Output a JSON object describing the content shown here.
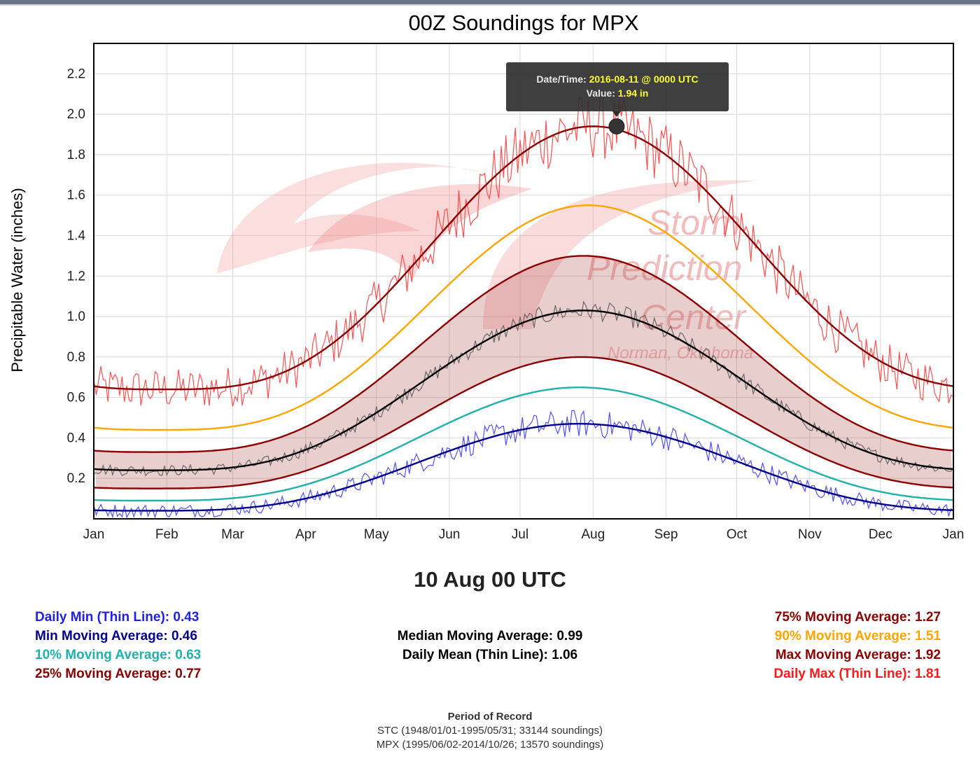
{
  "chart_data": {
    "type": "line",
    "title": "00Z Soundings for MPX",
    "xlabel": "",
    "ylabel": "Precipitable Water (inches)",
    "ylim": [
      0.0,
      2.35
    ],
    "yticks": [
      "0.2",
      "0.4",
      "0.6",
      "0.8",
      "1.0",
      "1.2",
      "1.4",
      "1.6",
      "1.8",
      "2.0",
      "2.2"
    ],
    "ytick_values": [
      0.2,
      0.4,
      0.6,
      0.8,
      1.0,
      1.2,
      1.4,
      1.6,
      1.8,
      2.0,
      2.2
    ],
    "months": [
      "Jan",
      "Feb",
      "Mar",
      "Apr",
      "May",
      "Jun",
      "Jul",
      "Aug",
      "Sep",
      "Oct",
      "Nov",
      "Dec",
      "Jan"
    ],
    "month_days": [
      0,
      31,
      59,
      90,
      120,
      151,
      181,
      212,
      243,
      273,
      304,
      334,
      365
    ],
    "grid": true,
    "series": [
      {
        "name": "Max Moving Average",
        "color": "#8b0000",
        "type": "smooth",
        "min": 0.64,
        "max": 1.94,
        "peak_day": 212
      },
      {
        "name": "90% Moving Average",
        "color": "#ffa500",
        "type": "smooth",
        "min": 0.44,
        "max": 1.55,
        "peak_day": 210
      },
      {
        "name": "75% Moving Average",
        "color": "#8b0000",
        "type": "smooth",
        "min": 0.33,
        "max": 1.3,
        "peak_day": 208
      },
      {
        "name": "Median Moving Average",
        "color": "#000000",
        "type": "smooth",
        "min": 0.24,
        "max": 1.03,
        "peak_day": 208
      },
      {
        "name": "25% Moving Average",
        "color": "#8b0000",
        "type": "smooth",
        "min": 0.15,
        "max": 0.8,
        "peak_day": 207
      },
      {
        "name": "10% Moving Average",
        "color": "#20b2aa",
        "type": "smooth",
        "min": 0.09,
        "max": 0.65,
        "peak_day": 206
      },
      {
        "name": "Min Moving Average",
        "color": "#00008b",
        "type": "smooth",
        "min": 0.04,
        "max": 0.47,
        "peak_day": 206
      },
      {
        "name": "Daily Max (Thin Line)",
        "color": "#ff3333",
        "type": "noisy",
        "base": "Max Moving Average",
        "noise": 0.12
      },
      {
        "name": "Daily Mean (Thin Line)",
        "color": "#555555",
        "type": "noisy",
        "base": "Median Moving Average",
        "noise": 0.035
      },
      {
        "name": "Daily Min (Thin Line)",
        "color": "#3333ff",
        "type": "noisy",
        "base": "Min Moving Average",
        "noise": 0.05
      }
    ],
    "band": {
      "lower": "25% Moving Average",
      "upper": "75% Moving Average",
      "color": "#b05050",
      "opacity": 0.28
    },
    "tooltip": {
      "date_label": "Date/Time:",
      "date_value": "2016-08-11 @ 0000 UTC",
      "value_label": "Value:",
      "value_text": "1.94 in",
      "point": {
        "day": 222,
        "value": 1.94
      }
    },
    "watermark": {
      "line1": "Storm",
      "line2": "Prediction",
      "line3": "Center",
      "line4": "Norman, Oklahoma"
    }
  },
  "selected_date": "10 Aug 00 UTC",
  "stats": {
    "left": [
      {
        "label": "Daily Min (Thin Line):",
        "value": "0.43",
        "color": "#1f1fe6"
      },
      {
        "label": "Min Moving Average:",
        "value": "0.46",
        "color": "#00008b"
      },
      {
        "label": "10% Moving Average:",
        "value": "0.63",
        "color": "#20b2aa"
      },
      {
        "label": "25% Moving Average:",
        "value": "0.77",
        "color": "#8b0000"
      }
    ],
    "center": [
      {
        "label": "Median Moving Average:",
        "value": "0.99",
        "color": "#000000"
      },
      {
        "label": "Daily Mean (Thin Line):",
        "value": "1.06",
        "color": "#000000"
      }
    ],
    "right": [
      {
        "label": "75% Moving Average:",
        "value": "1.27",
        "color": "#8b0000"
      },
      {
        "label": "90% Moving Average:",
        "value": "1.51",
        "color": "#ffa500"
      },
      {
        "label": "Max Moving Average:",
        "value": "1.92",
        "color": "#8b0000"
      },
      {
        "label": "Daily Max (Thin Line):",
        "value": "1.81",
        "color": "#ff1a1a"
      }
    ]
  },
  "record": {
    "title": "Period of Record",
    "line1": "STC (1948/01/01-1995/05/31; 33144 soundings)",
    "line2": "MPX (1995/06/02-2014/10/26; 13570 soundings)"
  }
}
